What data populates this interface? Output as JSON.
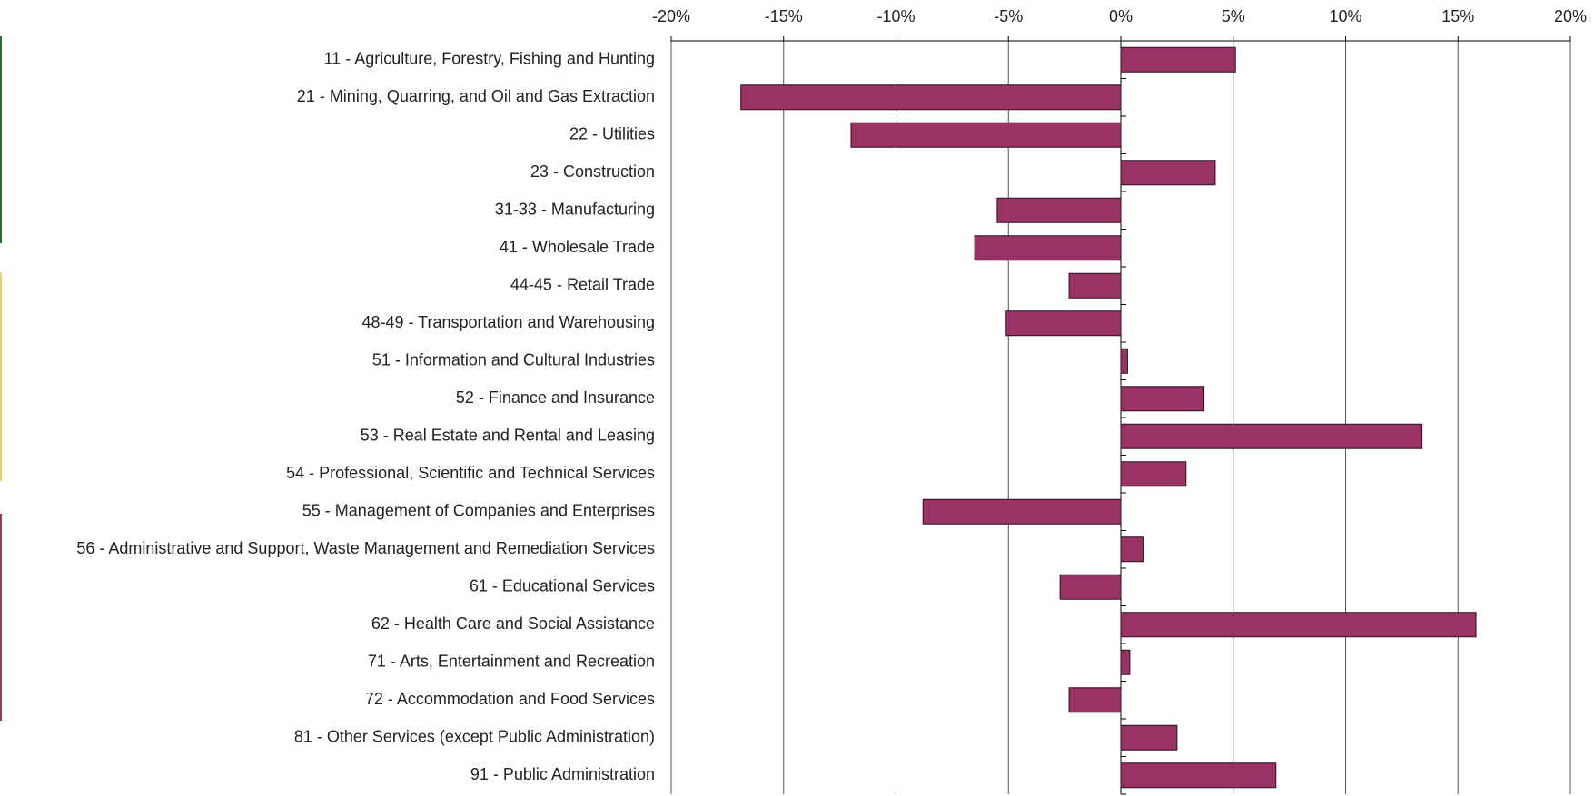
{
  "chart_data": {
    "type": "bar",
    "orientation": "horizontal",
    "categories": [
      "11 - Agriculture, Forestry, Fishing and Hunting",
      "21 - Mining, Quarring, and Oil and Gas Extraction",
      "22 - Utilities",
      "23 - Construction",
      "31-33 - Manufacturing",
      "41 - Wholesale Trade",
      "44-45 - Retail Trade",
      "48-49 - Transportation and Warehousing",
      "51 - Information and Cultural Industries",
      "52 - Finance and Insurance",
      "53 - Real Estate and Rental and Leasing",
      "54 - Professional, Scientific and Technical Services",
      "55 - Management of Companies and Enterprises",
      "56 - Administrative and Support, Waste Management and Remediation Services",
      "61 - Educational Services",
      "62 - Health Care and Social Assistance",
      "71 - Arts, Entertainment and Recreation",
      "72 - Accommodation and Food Services",
      "81 - Other Services (except Public Administration)",
      "91 - Public Administration"
    ],
    "values": [
      5.1,
      -16.9,
      -12.0,
      4.2,
      -5.5,
      -6.5,
      -2.3,
      -5.1,
      0.3,
      3.7,
      13.4,
      2.9,
      -8.8,
      1.0,
      -2.7,
      15.8,
      0.4,
      -2.3,
      2.5,
      6.9
    ],
    "color": "#993366",
    "xlim": [
      -20,
      20
    ],
    "xticks": [
      {
        "value": -20,
        "label": "-20%"
      },
      {
        "value": -15,
        "label": "-15%"
      },
      {
        "value": -10,
        "label": "-10%"
      },
      {
        "value": -5,
        "label": "-5%"
      },
      {
        "value": 0,
        "label": "0%"
      },
      {
        "value": 5,
        "label": "5%"
      },
      {
        "value": 10,
        "label": "10%"
      },
      {
        "value": 15,
        "label": "15%"
      },
      {
        "value": 20,
        "label": "20%"
      }
    ],
    "grid": true
  }
}
